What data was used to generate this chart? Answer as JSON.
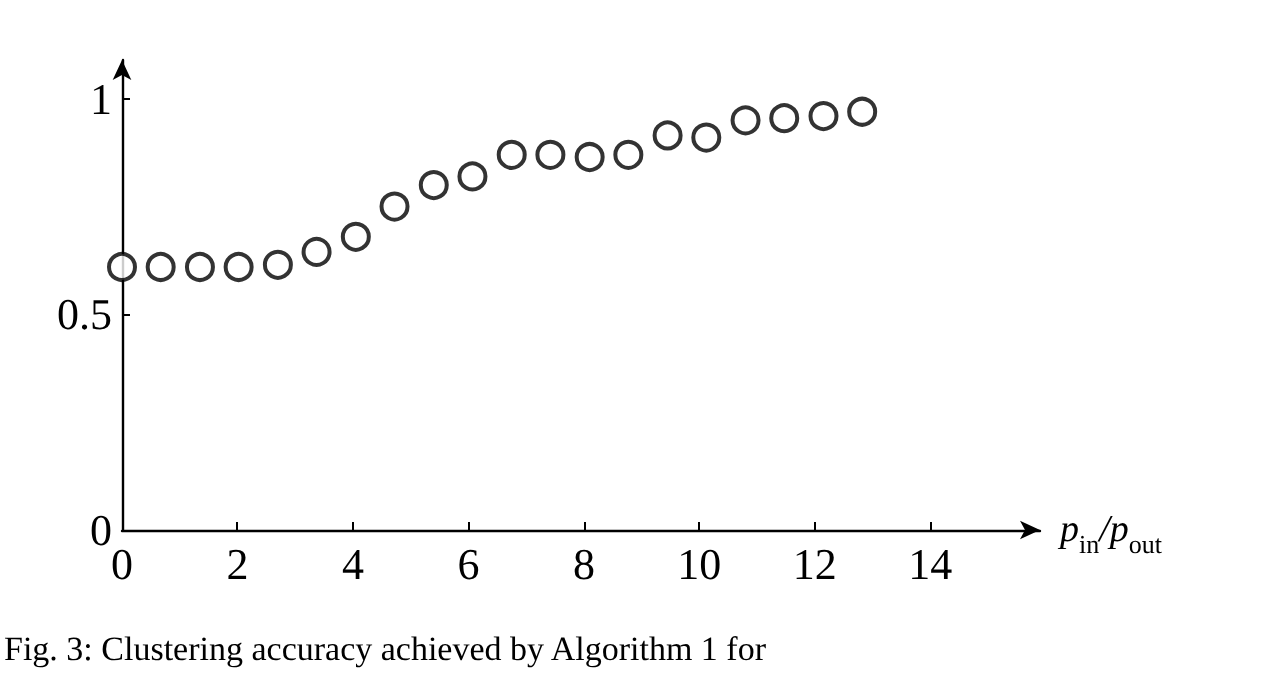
{
  "chart_data": {
    "type": "scatter",
    "xlabel": "p$_{in}$/p$_{out}$",
    "x": [
      0,
      0.67,
      1.35,
      2.02,
      2.7,
      3.37,
      4.05,
      4.72,
      5.4,
      6.07,
      6.75,
      7.42,
      8.1,
      8.77,
      9.45,
      10.12,
      10.8,
      11.47,
      12.15,
      12.82
    ],
    "series": [
      {
        "color": "#000000",
        "values": [
          0.61,
          0.61,
          0.61,
          0.61,
          0.615,
          0.645,
          0.68,
          0.75,
          0.8,
          0.82,
          0.87,
          0.87,
          0.865,
          0.87,
          0.915,
          0.91,
          0.95,
          0.955,
          0.96,
          0.97
        ]
      }
    ],
    "xlim": [
      0,
      15.9
    ],
    "xticks": [
      0,
      2,
      4,
      6,
      8,
      10,
      12,
      14
    ],
    "ylim": [
      0,
      1.09
    ],
    "yticks": [
      0,
      0.5,
      1
    ],
    "marker": "circle",
    "grid": false,
    "annotations": [
      "Fig. 3: Clustering accuracy achieved by Algorithm 1 for"
    ]
  }
}
